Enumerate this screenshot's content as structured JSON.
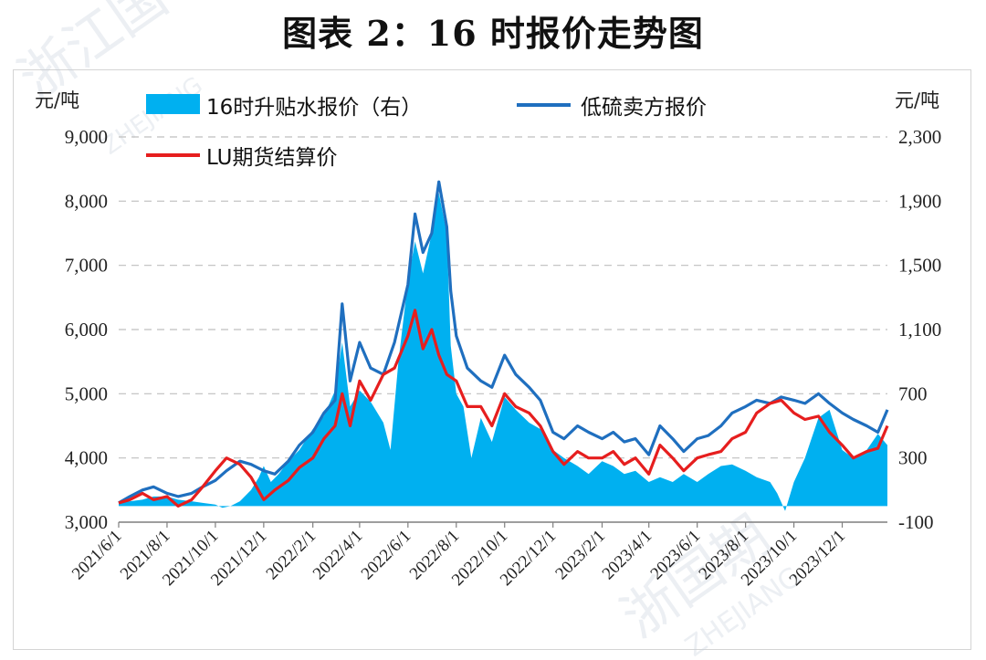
{
  "title": "图表 2：16 时报价走势图",
  "left_unit": "元/吨",
  "right_unit": "元/吨",
  "colors": {
    "area": "#00b0f0",
    "blue_line": "#1f6fbf",
    "red_line": "#e61e1e",
    "grid": "#bfbfbf"
  },
  "chart_data": {
    "type": "line",
    "x_tick_labels": [
      "2021/6/1",
      "2021/8/1",
      "2021/10/1",
      "2021/12/1",
      "2022/2/1",
      "2022/4/1",
      "2022/6/1",
      "2022/8/1",
      "2022/10/1",
      "2022/12/1",
      "2023/2/1",
      "2023/4/1",
      "2023/6/1",
      "2023/8/1",
      "2023/10/1",
      "2023/12/1"
    ],
    "x_range": [
      "2021/6/1",
      "2024/1/27"
    ],
    "y_left": {
      "ticks": [
        "9,000",
        "8,000",
        "7,000",
        "6,000",
        "5,000",
        "4,000",
        "3,000"
      ],
      "ylim": [
        3000,
        9000
      ]
    },
    "y_right": {
      "ticks": [
        "2,300",
        "1,900",
        "1,500",
        "1,100",
        "700",
        "300",
        "-100"
      ],
      "ylim": [
        -100,
        2300
      ]
    },
    "grid": "horizontal-dashed",
    "legend_placement": "top-left",
    "series": [
      {
        "name": "16时升贴水报价（右）",
        "type": "area",
        "axis": "right",
        "points": [
          [
            "2021/6/1",
            20
          ],
          [
            "2021/6/15",
            30
          ],
          [
            "2021/7/1",
            40
          ],
          [
            "2021/7/15",
            60
          ],
          [
            "2021/8/1",
            60
          ],
          [
            "2021/8/15",
            40
          ],
          [
            "2021/9/1",
            30
          ],
          [
            "2021/9/15",
            20
          ],
          [
            "2021/10/1",
            10
          ],
          [
            "2021/10/10",
            -10
          ],
          [
            "2021/10/20",
            0
          ],
          [
            "2021/11/1",
            30
          ],
          [
            "2021/11/15",
            100
          ],
          [
            "2021/11/25",
            180
          ],
          [
            "2021/12/1",
            250
          ],
          [
            "2021/12/10",
            150
          ],
          [
            "2021/12/20",
            200
          ],
          [
            "2022/1/1",
            280
          ],
          [
            "2022/1/15",
            350
          ],
          [
            "2022/2/1",
            480
          ],
          [
            "2022/2/15",
            560
          ],
          [
            "2022/3/1",
            720
          ],
          [
            "2022/3/10",
            1020
          ],
          [
            "2022/3/20",
            620
          ],
          [
            "2022/4/1",
            720
          ],
          [
            "2022/4/15",
            650
          ],
          [
            "2022/5/1",
            520
          ],
          [
            "2022/5/10",
            350
          ],
          [
            "2022/5/20",
            900
          ],
          [
            "2022/6/1",
            1400
          ],
          [
            "2022/6/10",
            1650
          ],
          [
            "2022/6/20",
            1450
          ],
          [
            "2022/7/1",
            1700
          ],
          [
            "2022/7/10",
            1950
          ],
          [
            "2022/7/20",
            1700
          ],
          [
            "2022/7/25",
            1000
          ],
          [
            "2022/8/1",
            700
          ],
          [
            "2022/8/10",
            620
          ],
          [
            "2022/8/20",
            300
          ],
          [
            "2022/9/1",
            550
          ],
          [
            "2022/9/15",
            400
          ],
          [
            "2022/10/1",
            680
          ],
          [
            "2022/10/15",
            600
          ],
          [
            "2022/11/1",
            520
          ],
          [
            "2022/11/15",
            480
          ],
          [
            "2022/12/1",
            350
          ],
          [
            "2022/12/15",
            300
          ],
          [
            "2023/1/1",
            250
          ],
          [
            "2023/1/15",
            200
          ],
          [
            "2023/2/1",
            280
          ],
          [
            "2023/2/15",
            250
          ],
          [
            "2023/3/1",
            200
          ],
          [
            "2023/3/15",
            220
          ],
          [
            "2023/4/1",
            150
          ],
          [
            "2023/4/15",
            180
          ],
          [
            "2023/5/1",
            150
          ],
          [
            "2023/5/15",
            200
          ],
          [
            "2023/6/1",
            150
          ],
          [
            "2023/6/15",
            200
          ],
          [
            "2023/7/1",
            250
          ],
          [
            "2023/7/15",
            260
          ],
          [
            "2023/8/1",
            220
          ],
          [
            "2023/8/15",
            180
          ],
          [
            "2023/9/1",
            150
          ],
          [
            "2023/9/10",
            80
          ],
          [
            "2023/9/20",
            -30
          ],
          [
            "2023/10/1",
            150
          ],
          [
            "2023/10/15",
            300
          ],
          [
            "2023/11/1",
            550
          ],
          [
            "2023/11/15",
            600
          ],
          [
            "2023/12/1",
            350
          ],
          [
            "2023/12/15",
            300
          ],
          [
            "2024/1/1",
            350
          ],
          [
            "2024/1/15",
            450
          ],
          [
            "2024/1/27",
            380
          ]
        ]
      },
      {
        "name": "低硫卖方报价",
        "type": "line",
        "axis": "left",
        "points": [
          [
            "2021/6/1",
            3300
          ],
          [
            "2021/6/15",
            3400
          ],
          [
            "2021/7/1",
            3500
          ],
          [
            "2021/7/15",
            3550
          ],
          [
            "2021/8/1",
            3450
          ],
          [
            "2021/8/15",
            3400
          ],
          [
            "2021/9/1",
            3450
          ],
          [
            "2021/9/15",
            3550
          ],
          [
            "2021/10/1",
            3650
          ],
          [
            "2021/10/15",
            3800
          ],
          [
            "2021/11/1",
            3950
          ],
          [
            "2021/11/15",
            3900
          ],
          [
            "2021/12/1",
            3800
          ],
          [
            "2021/12/15",
            3750
          ],
          [
            "2022/1/1",
            3950
          ],
          [
            "2022/1/15",
            4200
          ],
          [
            "2022/2/1",
            4400
          ],
          [
            "2022/2/15",
            4700
          ],
          [
            "2022/3/1",
            4900
          ],
          [
            "2022/3/10",
            6400
          ],
          [
            "2022/3/20",
            5200
          ],
          [
            "2022/4/1",
            5800
          ],
          [
            "2022/4/15",
            5400
          ],
          [
            "2022/5/1",
            5300
          ],
          [
            "2022/5/15",
            5800
          ],
          [
            "2022/6/1",
            6700
          ],
          [
            "2022/6/10",
            7800
          ],
          [
            "2022/6/20",
            7200
          ],
          [
            "2022/7/1",
            7500
          ],
          [
            "2022/7/10",
            8300
          ],
          [
            "2022/7/20",
            7600
          ],
          [
            "2022/7/25",
            6600
          ],
          [
            "2022/8/1",
            5900
          ],
          [
            "2022/8/15",
            5400
          ],
          [
            "2022/9/1",
            5200
          ],
          [
            "2022/9/15",
            5100
          ],
          [
            "2022/10/1",
            5600
          ],
          [
            "2022/10/15",
            5300
          ],
          [
            "2022/11/1",
            5100
          ],
          [
            "2022/11/15",
            4900
          ],
          [
            "2022/12/1",
            4400
          ],
          [
            "2022/12/15",
            4300
          ],
          [
            "2023/1/1",
            4500
          ],
          [
            "2023/1/15",
            4400
          ],
          [
            "2023/2/1",
            4300
          ],
          [
            "2023/2/15",
            4400
          ],
          [
            "2023/3/1",
            4250
          ],
          [
            "2023/3/15",
            4300
          ],
          [
            "2023/4/1",
            4050
          ],
          [
            "2023/4/15",
            4500
          ],
          [
            "2023/5/1",
            4300
          ],
          [
            "2023/5/15",
            4100
          ],
          [
            "2023/6/1",
            4300
          ],
          [
            "2023/6/15",
            4350
          ],
          [
            "2023/7/1",
            4500
          ],
          [
            "2023/7/15",
            4700
          ],
          [
            "2023/8/1",
            4800
          ],
          [
            "2023/8/15",
            4900
          ],
          [
            "2023/9/1",
            4850
          ],
          [
            "2023/9/15",
            4950
          ],
          [
            "2023/10/1",
            4900
          ],
          [
            "2023/10/15",
            4850
          ],
          [
            "2023/11/1",
            5000
          ],
          [
            "2023/11/15",
            4850
          ],
          [
            "2023/12/1",
            4700
          ],
          [
            "2023/12/15",
            4600
          ],
          [
            "2024/1/1",
            4500
          ],
          [
            "2024/1/15",
            4400
          ],
          [
            "2024/1/27",
            4750
          ]
        ]
      },
      {
        "name": "LU期货结算价",
        "type": "line",
        "axis": "left",
        "points": [
          [
            "2021/6/1",
            3300
          ],
          [
            "2021/6/15",
            3350
          ],
          [
            "2021/7/1",
            3450
          ],
          [
            "2021/7/15",
            3350
          ],
          [
            "2021/8/1",
            3400
          ],
          [
            "2021/8/15",
            3250
          ],
          [
            "2021/9/1",
            3350
          ],
          [
            "2021/9/15",
            3550
          ],
          [
            "2021/10/1",
            3800
          ],
          [
            "2021/10/15",
            4000
          ],
          [
            "2021/11/1",
            3900
          ],
          [
            "2021/11/15",
            3700
          ],
          [
            "2021/12/1",
            3350
          ],
          [
            "2021/12/15",
            3500
          ],
          [
            "2022/1/1",
            3650
          ],
          [
            "2022/1/15",
            3850
          ],
          [
            "2022/2/1",
            4000
          ],
          [
            "2022/2/15",
            4300
          ],
          [
            "2022/3/1",
            4500
          ],
          [
            "2022/3/10",
            5000
          ],
          [
            "2022/3/20",
            4500
          ],
          [
            "2022/4/1",
            5200
          ],
          [
            "2022/4/15",
            4900
          ],
          [
            "2022/5/1",
            5300
          ],
          [
            "2022/5/15",
            5400
          ],
          [
            "2022/6/1",
            5900
          ],
          [
            "2022/6/10",
            6300
          ],
          [
            "2022/6/20",
            5700
          ],
          [
            "2022/7/1",
            6000
          ],
          [
            "2022/7/10",
            5600
          ],
          [
            "2022/7/20",
            5300
          ],
          [
            "2022/8/1",
            5200
          ],
          [
            "2022/8/15",
            4800
          ],
          [
            "2022/9/1",
            4800
          ],
          [
            "2022/9/15",
            4500
          ],
          [
            "2022/10/1",
            5000
          ],
          [
            "2022/10/15",
            4800
          ],
          [
            "2022/11/1",
            4700
          ],
          [
            "2022/11/15",
            4500
          ],
          [
            "2022/12/1",
            4100
          ],
          [
            "2022/12/15",
            3900
          ],
          [
            "2023/1/1",
            4100
          ],
          [
            "2023/1/15",
            4000
          ],
          [
            "2023/2/1",
            4000
          ],
          [
            "2023/2/15",
            4100
          ],
          [
            "2023/3/1",
            3900
          ],
          [
            "2023/3/15",
            4000
          ],
          [
            "2023/4/1",
            3750
          ],
          [
            "2023/4/15",
            4200
          ],
          [
            "2023/5/1",
            4000
          ],
          [
            "2023/5/15",
            3800
          ],
          [
            "2023/6/1",
            4000
          ],
          [
            "2023/6/15",
            4050
          ],
          [
            "2023/7/1",
            4100
          ],
          [
            "2023/7/15",
            4300
          ],
          [
            "2023/8/1",
            4400
          ],
          [
            "2023/8/15",
            4700
          ],
          [
            "2023/9/1",
            4850
          ],
          [
            "2023/9/15",
            4900
          ],
          [
            "2023/10/1",
            4700
          ],
          [
            "2023/10/15",
            4600
          ],
          [
            "2023/11/1",
            4650
          ],
          [
            "2023/11/15",
            4400
          ],
          [
            "2023/12/1",
            4200
          ],
          [
            "2023/12/15",
            4000
          ],
          [
            "2024/1/1",
            4100
          ],
          [
            "2024/1/15",
            4150
          ],
          [
            "2024/1/27",
            4500
          ]
        ]
      }
    ]
  }
}
